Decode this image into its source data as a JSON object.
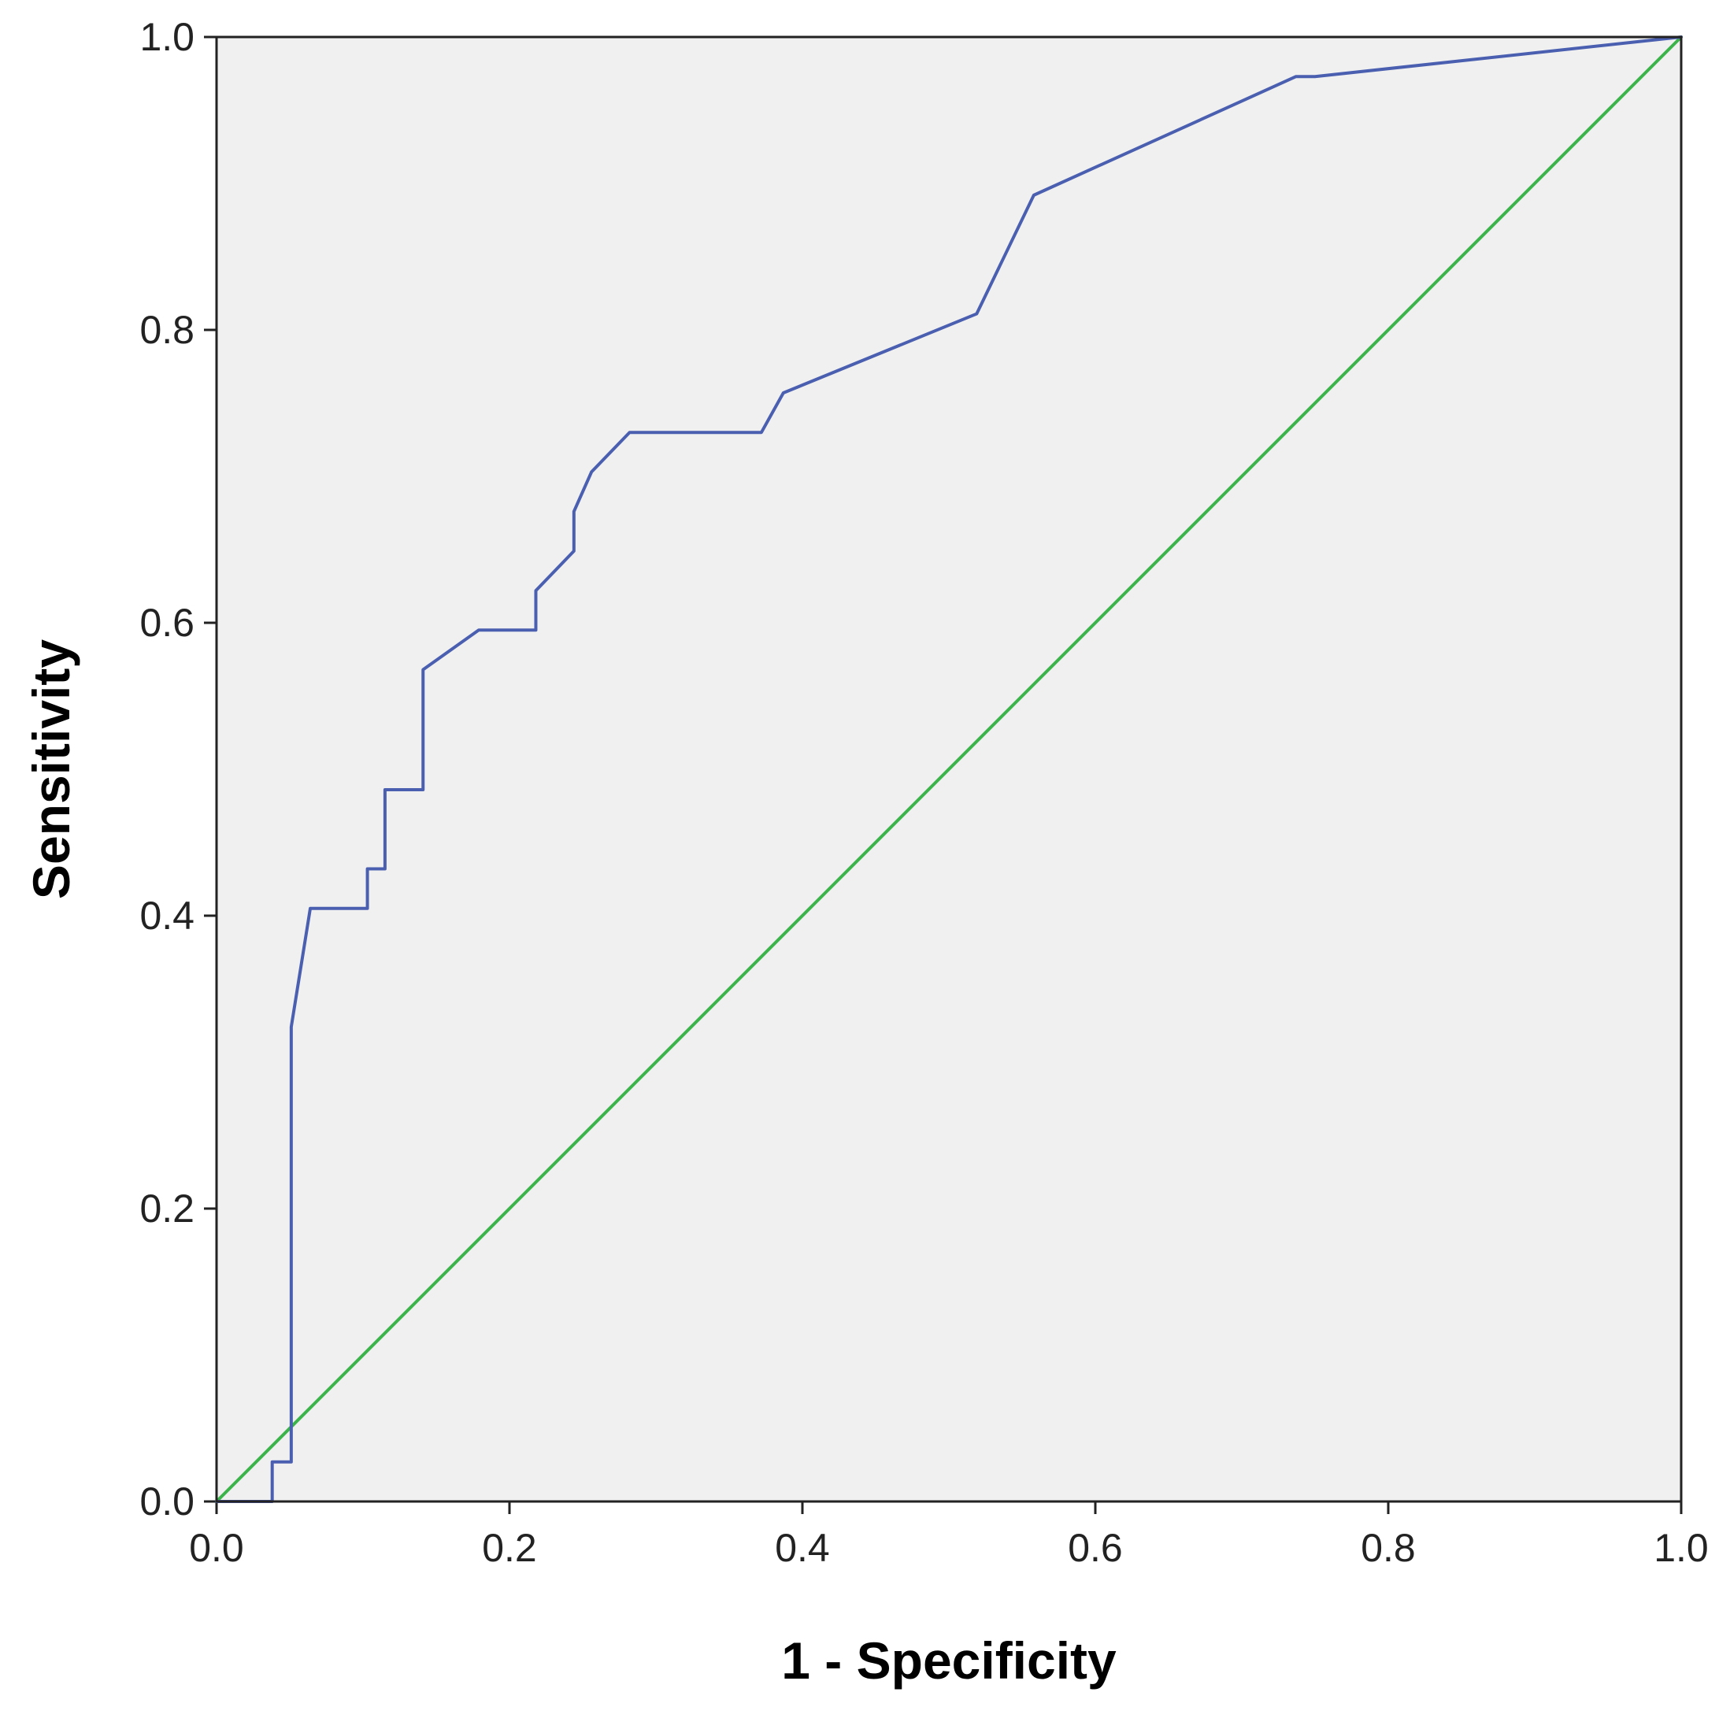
{
  "chart_data": {
    "type": "line",
    "title": "",
    "xlabel": "1 - Specificity",
    "ylabel": "Sensitivity",
    "xlim": [
      0,
      1
    ],
    "ylim": [
      0,
      1
    ],
    "x_ticks": [
      "0.0",
      "0.2",
      "0.4",
      "0.6",
      "0.8",
      "1.0"
    ],
    "y_ticks": [
      "0.0",
      "0.2",
      "0.4",
      "0.6",
      "0.8",
      "1.0"
    ],
    "grid": false,
    "legend": "none",
    "background_color": "#f0f0f0",
    "series": [
      {
        "color": "#4a5fb0",
        "points": [
          [
            0.0,
            0.0
          ],
          [
            0.038,
            0.0
          ],
          [
            0.038,
            0.027
          ],
          [
            0.051,
            0.027
          ],
          [
            0.051,
            0.324
          ],
          [
            0.064,
            0.405
          ],
          [
            0.103,
            0.405
          ],
          [
            0.103,
            0.432
          ],
          [
            0.115,
            0.432
          ],
          [
            0.115,
            0.486
          ],
          [
            0.141,
            0.486
          ],
          [
            0.141,
            0.568
          ],
          [
            0.179,
            0.595
          ],
          [
            0.218,
            0.595
          ],
          [
            0.218,
            0.622
          ],
          [
            0.244,
            0.649
          ],
          [
            0.244,
            0.676
          ],
          [
            0.256,
            0.703
          ],
          [
            0.282,
            0.73
          ],
          [
            0.372,
            0.73
          ],
          [
            0.387,
            0.757
          ],
          [
            0.519,
            0.811
          ],
          [
            0.558,
            0.892
          ],
          [
            0.737,
            0.973
          ],
          [
            0.75,
            0.973
          ],
          [
            1.0,
            1.0
          ]
        ]
      },
      {
        "color": "#3cb44b",
        "points": [
          [
            0.0,
            0.0
          ],
          [
            1.0,
            1.0
          ]
        ]
      }
    ]
  }
}
